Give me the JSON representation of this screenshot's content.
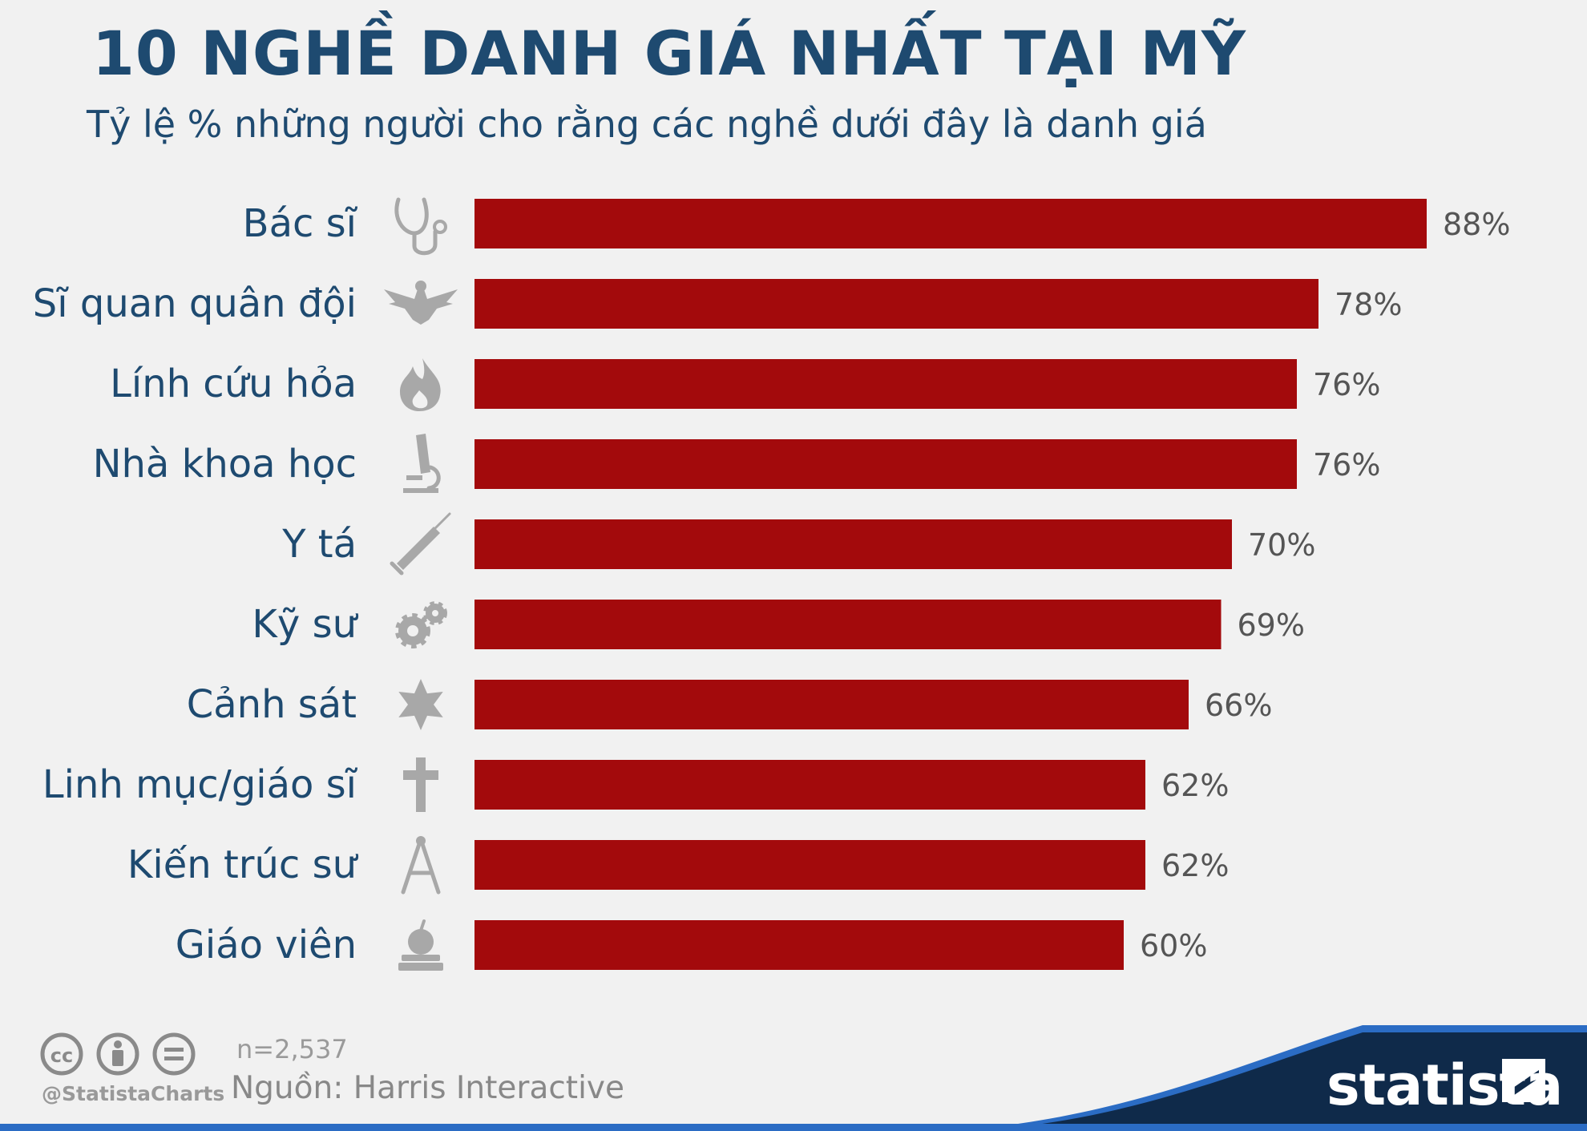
{
  "header": {
    "title": "10 NGHỀ DANH GIÁ NHẤT TẠI MỸ",
    "subtitle": "Tỷ lệ % những người cho rằng các nghề dưới đây là danh giá"
  },
  "chart_data": {
    "type": "bar",
    "orientation": "horizontal",
    "categories": [
      "Bác sĩ",
      "Sĩ quan quân đội",
      "Lính cứu hỏa",
      "Nhà khoa học",
      "Y tá",
      "Kỹ sư",
      "Cảnh sát",
      "Linh mục/giáo sĩ",
      "Kiến trúc sư",
      "Giáo viên"
    ],
    "values": [
      88,
      78,
      76,
      76,
      70,
      69,
      66,
      62,
      62,
      60
    ],
    "value_labels": [
      "88%",
      "78%",
      "76%",
      "76%",
      "70%",
      "69%",
      "66%",
      "62%",
      "62%",
      "60%"
    ],
    "icons": [
      "stethoscope-icon",
      "eagle-insignia-icon",
      "flame-icon",
      "microscope-icon",
      "syringe-icon",
      "gears-icon",
      "sheriff-star-icon",
      "cross-icon",
      "compass-icon",
      "apple-books-icon"
    ],
    "bar_color": "#a30a0c",
    "xlim": [
      0,
      100
    ],
    "grid": false,
    "legend": "none"
  },
  "footer": {
    "sample": "n=2,537",
    "source": "Nguồn: Harris Interactive",
    "handle": "@StatistaCharts",
    "brand": "statista"
  },
  "colors": {
    "title": "#1e4a70",
    "bar": "#a30a0c",
    "background": "#f1f1f1",
    "brand_dark": "#0f2a4a",
    "brand_blue": "#2b6cc4"
  }
}
